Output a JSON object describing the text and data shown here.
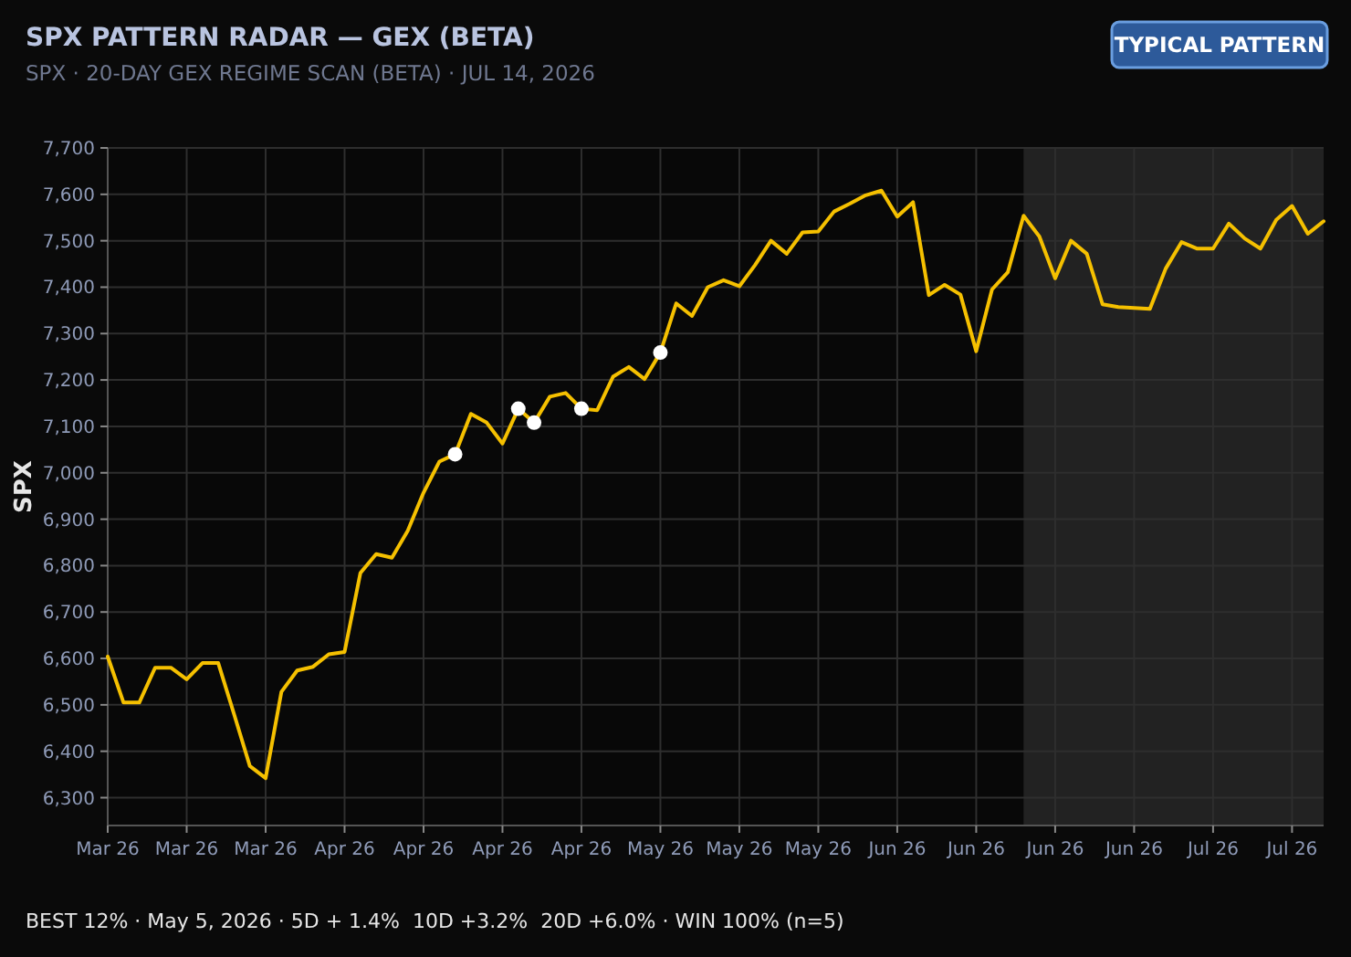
{
  "chart_data": {
    "type": "line",
    "title": "SPX PATTERN RADAR — GEX (BETA)",
    "subtitle": "SPX · 20-DAY GEX REGIME SCAN (BETA) · JUL 14, 2026",
    "ylabel": "SPX",
    "annotations": [
      "TYPICAL PATTERN",
      "BEST 12% · May 5, 2026 · 5D + 1.4%  10D +3.2%  20D +6.0% · WIN 100% (n=5)"
    ],
    "categories": [
      "Mar 26",
      null,
      null,
      null,
      null,
      "Mar 26",
      null,
      null,
      null,
      null,
      "Mar 26",
      null,
      null,
      null,
      null,
      "Apr 26",
      null,
      null,
      null,
      null,
      "Apr 26",
      null,
      null,
      null,
      null,
      "Apr 26",
      null,
      null,
      null,
      null,
      "Apr 26",
      null,
      null,
      null,
      null,
      "May 26",
      null,
      null,
      null,
      null,
      "May 26",
      null,
      null,
      null,
      null,
      "May 26",
      null,
      null,
      null,
      null,
      "Jun 26",
      null,
      null,
      null,
      null,
      "Jun 26",
      null,
      null,
      null,
      null,
      "Jun 26",
      null,
      null,
      null,
      null,
      "Jun 26",
      null,
      null,
      null,
      null,
      "Jul 26",
      null,
      null,
      null,
      null,
      "Jul 26",
      null,
      null
    ],
    "series": [
      {
        "color": "#f5c000",
        "values": [
          6604,
          6505,
          6505,
          6580,
          6580,
          6555,
          6590,
          6590,
          6480,
          6368,
          6342,
          6528,
          6574,
          6582,
          6609,
          6614,
          6784,
          6825,
          6817,
          6875,
          6957,
          7024,
          7040,
          7127,
          7108,
          7063,
          7138,
          7108,
          7164,
          7172,
          7138,
          7135,
          7207,
          7228,
          7202,
          7259,
          7365,
          7338,
          7400,
          7415,
          7402,
          7448,
          7500,
          7472,
          7518,
          7520,
          7563,
          7580,
          7598,
          7608,
          7552,
          7583,
          7383,
          7405,
          7384,
          7262,
          7395,
          7432,
          7554,
          7509,
          7419,
          7500,
          7472,
          7363,
          7357,
          7355,
          7353,
          7440,
          7497,
          7483,
          7483,
          7537,
          7505,
          7483,
          7545,
          7575,
          7515,
          7542
        ]
      },
      {
        "type": "scatter",
        "color": "#ffffff",
        "values": [
          null,
          null,
          null,
          null,
          null,
          null,
          null,
          null,
          null,
          null,
          null,
          null,
          null,
          null,
          null,
          null,
          null,
          null,
          null,
          null,
          null,
          null,
          7040,
          null,
          null,
          null,
          7138,
          7108,
          null,
          null,
          7138,
          null,
          null,
          null,
          null,
          7259,
          null,
          null,
          null,
          null,
          null,
          null,
          null,
          null,
          null,
          null,
          null,
          null,
          null,
          null,
          null,
          null,
          null,
          null,
          null,
          null,
          null,
          null,
          null,
          null,
          null,
          null,
          null,
          null,
          null,
          null,
          null,
          null,
          null,
          null,
          null,
          null,
          null,
          null,
          null,
          null,
          null,
          null
        ]
      }
    ],
    "ylim": [
      6240,
      7700
    ],
    "yticks": [
      {
        "value": 6300,
        "label": "6,300"
      },
      {
        "value": 6400,
        "label": "6,400"
      },
      {
        "value": 6500,
        "label": "6,500"
      },
      {
        "value": 6600,
        "label": "6,600"
      },
      {
        "value": 6700,
        "label": "6,700"
      },
      {
        "value": 6800,
        "label": "6,800"
      },
      {
        "value": 6900,
        "label": "6,900"
      },
      {
        "value": 7000,
        "label": "7,000"
      },
      {
        "value": 7100,
        "label": "7,100"
      },
      {
        "value": 7200,
        "label": "7,200"
      },
      {
        "value": 7300,
        "label": "7,300"
      },
      {
        "value": 7400,
        "label": "7,400"
      },
      {
        "value": 7500,
        "label": "7,500"
      },
      {
        "value": 7600,
        "label": "7,600"
      },
      {
        "value": 7700,
        "label": "7,700"
      }
    ],
    "grid": true,
    "line_style": "solid"
  }
}
